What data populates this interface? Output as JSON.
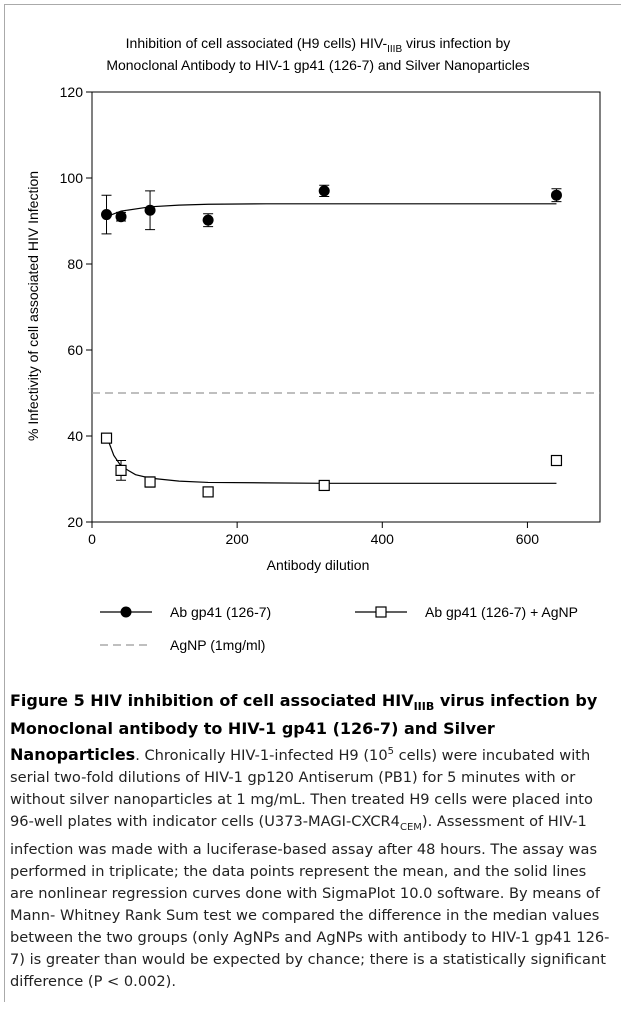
{
  "chart_data": {
    "type": "scatter",
    "title": [
      "Inhibition of cell associated (H9 cells) HIV-",
      "IIIB",
      " virus infection by",
      "Monoclonal Antibody to HIV-1 gp41 (126-7) and Silver Nanoparticles"
    ],
    "xlabel": "Antibody dilution",
    "ylabel": "% Infectivity of cell associated HIV Infection",
    "xlim": [
      0,
      700
    ],
    "xticks": [
      0,
      200,
      400,
      600
    ],
    "ylim": [
      20,
      120
    ],
    "yticks": [
      20,
      40,
      60,
      80,
      100,
      120
    ],
    "series": [
      {
        "name": "Ab gp41 (126-7)",
        "marker": "circle",
        "color": "#000000",
        "x": [
          20,
          40,
          80,
          160,
          320,
          640
        ],
        "values": [
          91.5,
          91,
          92.5,
          90.2,
          97,
          96
        ],
        "errors": [
          4.5,
          1,
          4.5,
          1.5,
          1.3,
          1.5
        ],
        "fit_x": [
          20,
          40,
          80,
          120,
          160,
          240,
          320,
          480,
          640
        ],
        "fit_y": [
          91,
          92.3,
          93.3,
          93.7,
          93.9,
          94,
          94,
          94,
          94
        ]
      },
      {
        "name": "Ab gp41 (126-7) + AgNP",
        "marker": "square",
        "color": "#000000",
        "x": [
          20,
          40,
          80,
          160,
          320,
          640
        ],
        "values": [
          39.5,
          32,
          29.3,
          27,
          28.5,
          34.3
        ],
        "errors": [
          1,
          2.3,
          1.2,
          1,
          1,
          0.8
        ],
        "fit_x": [
          20,
          30,
          40,
          60,
          80,
          120,
          160,
          240,
          320,
          480,
          640
        ],
        "fit_y": [
          40,
          35.5,
          33,
          31,
          30.2,
          29.5,
          29.2,
          29.1,
          29,
          29,
          29
        ]
      }
    ],
    "reference_line": {
      "name": "AgNP (1mg/ml)",
      "value": 50,
      "color": "#999999",
      "style": "dashed"
    }
  },
  "caption": [
    {
      "text": "Figure 5 HIV inhibition of cell associated HIV",
      "style": "bold"
    },
    {
      "text": "IIIB",
      "style": "bold-sub"
    },
    {
      "text": " virus infection by Monoclonal antibody to HIV-1 gp41 (126-7) and Silver Nanoparticles",
      "style": "bold"
    },
    {
      "text": ". Chronically HIV-1-infected H9 (10",
      "style": "normal"
    },
    {
      "text": "5",
      "style": "sup"
    },
    {
      "text": " cells) were incubated with serial two-fold dilutions of HIV-1 gp120 Antiserum (PB1) for 5 minutes with or without silver nanoparticles at 1 mg/mL. Then treated H9 cells were placed into 96-well plates with indicator cells (U373-MAGI-CXCR4",
      "style": "normal"
    },
    {
      "text": "CEM",
      "style": "sub"
    },
    {
      "text": "). Assessment of HIV-1 infection was made with a luciferase-based assay after 48 hours. The assay was performed in triplicate; the data points represent the mean, and the solid lines are nonlinear regression curves done with SigmaPlot 10.0 software. By means of Mann- Whitney Rank Sum test we compared the difference in the median values between the two groups (only AgNPs and AgNPs with antibody to HIV-1 gp41 126-7) is greater than would be expected by chance; there is a statistically significant difference (P < 0.002).",
      "style": "normal"
    }
  ]
}
